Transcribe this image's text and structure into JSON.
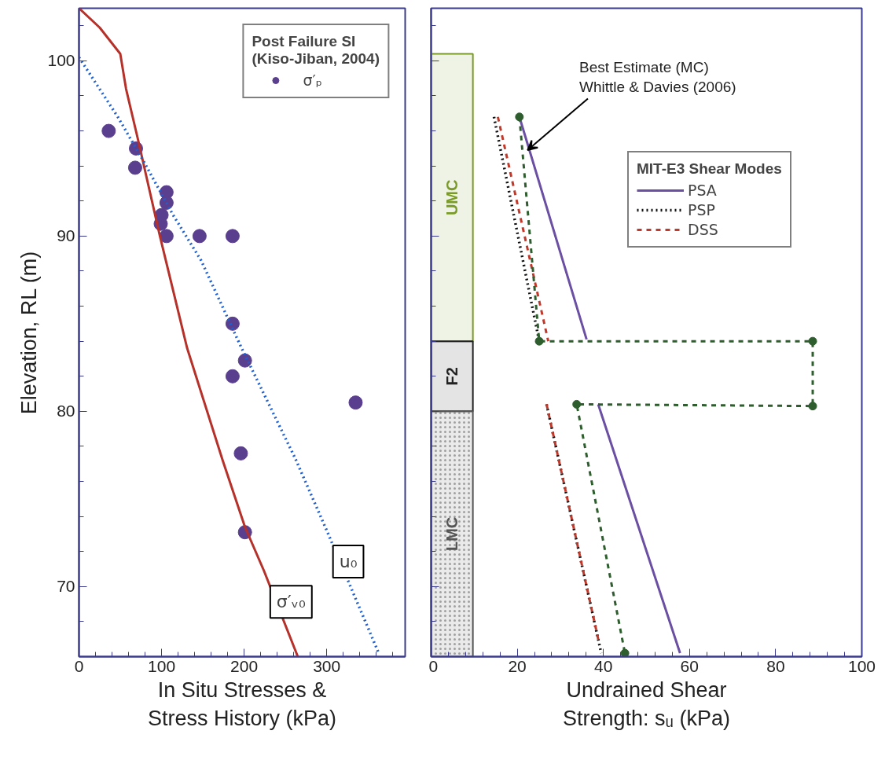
{
  "chart_data": [
    {
      "type": "line",
      "xlabel": "In Situ Stresses &\nStress History (kPa)",
      "ylabel": "Elevation, RL (m)",
      "legend_title": "Post Failure SI\n(Kiso-Jiban, 2004)",
      "legend": "top right",
      "grid": false,
      "xlim": [
        0,
        395
      ],
      "xticks": [
        0,
        100,
        200,
        300
      ],
      "ylim": [
        66,
        103
      ],
      "yticks": [
        70,
        80,
        90,
        100
      ],
      "series": [
        {
          "name": "σ′ₚ",
          "type": "scatter",
          "marker": "circle",
          "color": "#5b3f8f",
          "x": [
            36,
            69,
            68,
            106,
            106,
            100,
            99,
            106,
            146,
            186,
            186,
            201,
            186,
            335,
            196,
            201
          ],
          "values": [
            96.0,
            95.0,
            93.9,
            92.5,
            91.9,
            91.2,
            90.7,
            90.0,
            90.0,
            90.0,
            85.0,
            82.9,
            82.0,
            80.5,
            77.6,
            73.1
          ]
        },
        {
          "name": "σ′ᵥ₀",
          "type": "line",
          "line_style": "solid",
          "color": "#b5312a",
          "x": [
            0,
            25,
            50,
            57,
            71,
            98,
            131,
            174,
            201,
            224,
            265
          ],
          "values": [
            103.0,
            101.9,
            100.4,
            98.4,
            95.6,
            90.0,
            83.6,
            77.2,
            73.4,
            70.9,
            66.0
          ]
        },
        {
          "name": "u₀",
          "type": "line",
          "line_style": "dotted",
          "color": "#1f5fd0",
          "x": [
            0,
            47,
            79,
            114,
            148,
            196,
            262,
            300,
            363
          ],
          "values": [
            100.2,
            96.8,
            94.2,
            91.2,
            88.6,
            83.7,
            77.3,
            73.2,
            66.2
          ]
        }
      ]
    },
    {
      "type": "line",
      "xlabel": "Undrained Shear\nStrength: sᵤ (kPa)",
      "legend_title": "MIT-E3 Shear Modes",
      "legend": "right",
      "grid": false,
      "tick_labels": "x",
      "xlim": [
        0,
        100
      ],
      "xticks": [
        0,
        20,
        40,
        60,
        80,
        100
      ],
      "ylim": [
        66,
        103
      ],
      "yticks": [
        70,
        80,
        90,
        100
      ],
      "bands": [
        {
          "axis": "y",
          "from": 84.0,
          "to": 100.4,
          "label": "UMC",
          "color": "#7a9a2a"
        },
        {
          "axis": "y",
          "from": 80.0,
          "to": 84.0,
          "label": "F2",
          "color": "#222222"
        },
        {
          "axis": "y",
          "from": 66.0,
          "to": 80.0,
          "label": "LMC",
          "color": "#555555"
        }
      ],
      "annotations": [
        {
          "text": "Best Estimate (MC)\nWhittle & Davies (2006)",
          "x": 22.4,
          "y": 94.9
        }
      ],
      "series": [
        {
          "name": "PSA",
          "line_style": "solid",
          "color": "#6a4fa3",
          "x": [
            20.5,
            36.1,
            null,
            38.8,
            57.8
          ],
          "values": [
            96.8,
            84.1,
            null,
            80.4,
            66.2
          ]
        },
        {
          "name": "PSP",
          "line_style": "dotted",
          "color": "#111111",
          "x": [
            14.6,
            25.1,
            null,
            26.8,
            39.5
          ],
          "values": [
            96.8,
            84.0,
            null,
            80.4,
            66.2
          ]
        },
        {
          "name": "DSS",
          "line_style": "dashed",
          "color": "#c0392b",
          "x": [
            15.5,
            27.2,
            null,
            26.8,
            38.8
          ],
          "values": [
            96.8,
            84.0,
            null,
            80.4,
            67.0
          ]
        },
        {
          "line_style": "dashed",
          "marker": "circle",
          "color": "#2e5e2e",
          "x": [
            20.5,
            25.1,
            88.6,
            88.6,
            33.8,
            45.0
          ],
          "values": [
            96.8,
            84.0,
            84.0,
            80.3,
            80.4,
            66.2
          ]
        }
      ]
    }
  ]
}
